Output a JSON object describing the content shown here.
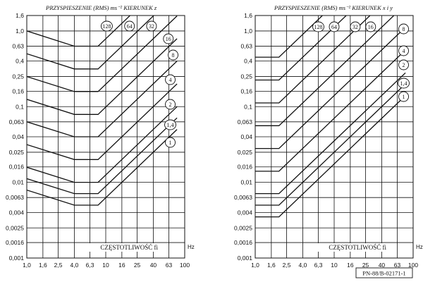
{
  "chart_data": [
    {
      "type": "line",
      "title": "PRZYSPIESZENIE (RMS) ms⁻² KIERUNEK z",
      "xlabel": "CZĘSTOTLIWOŚĆ fi",
      "xunit": "Hz",
      "xscale": "log",
      "yscale": "log",
      "xlim": [
        1.0,
        100
      ],
      "ylim": [
        0.001,
        1.6
      ],
      "x_ticks": [
        "1,0",
        "1,6",
        "2,5",
        "4,0",
        "6,3",
        "10",
        "16",
        "25",
        "40",
        "63",
        "100"
      ],
      "y_ticks": [
        "1,6",
        "1,0",
        "0,63",
        "0,4",
        "0,25",
        "0,16",
        "0,1",
        "0,063",
        "0,04",
        "0,025",
        "0,016",
        "0,01",
        "0,0063",
        "0,004",
        "0,0025",
        "0,0016",
        "0,001"
      ],
      "series": [
        {
          "name": "128",
          "x": [
            1.0,
            4.0,
            8.0,
            80.0
          ],
          "y": [
            1.0,
            0.63,
            0.63,
            6.3
          ]
        },
        {
          "name": "64",
          "x": [
            1.0,
            4.0,
            8.0,
            80.0
          ],
          "y": [
            0.5,
            0.315,
            0.315,
            3.15
          ]
        },
        {
          "name": "32",
          "x": [
            1.0,
            4.0,
            8.0,
            80.0
          ],
          "y": [
            0.25,
            0.158,
            0.158,
            1.58
          ]
        },
        {
          "name": "16",
          "x": [
            1.0,
            4.0,
            8.0,
            80.0
          ],
          "y": [
            0.125,
            0.079,
            0.079,
            0.79
          ]
        },
        {
          "name": "8",
          "x": [
            1.0,
            4.0,
            8.0,
            80.0
          ],
          "y": [
            0.063,
            0.04,
            0.04,
            0.4
          ]
        },
        {
          "name": "4",
          "x": [
            1.0,
            4.0,
            8.0,
            80.0
          ],
          "y": [
            0.0315,
            0.02,
            0.02,
            0.2
          ]
        },
        {
          "name": "2",
          "x": [
            1.0,
            4.0,
            8.0,
            80.0
          ],
          "y": [
            0.0158,
            0.01,
            0.01,
            0.1
          ]
        },
        {
          "name": "1,4",
          "x": [
            1.0,
            4.0,
            8.0,
            80.0
          ],
          "y": [
            0.0112,
            0.0071,
            0.0071,
            0.071
          ]
        },
        {
          "name": "1",
          "x": [
            1.0,
            4.0,
            8.0,
            80.0
          ],
          "y": [
            0.0079,
            0.005,
            0.005,
            0.05
          ]
        }
      ]
    },
    {
      "type": "line",
      "title": "PRZYSPIESZENIE (RMS) ms⁻² KIERUNEK x i y",
      "xlabel": "CZĘSTOTLIWOŚĆ fi",
      "xunit": "Hz",
      "xscale": "log",
      "yscale": "log",
      "xlim": [
        1.0,
        100
      ],
      "ylim": [
        0.001,
        1.6
      ],
      "x_ticks": [
        "1,0",
        "1,6",
        "2,5",
        "4,0",
        "6,3",
        "10",
        "16",
        "25",
        "40",
        "63",
        "100"
      ],
      "y_ticks": [
        "1,6",
        "1,0",
        "0,63",
        "0,4",
        "0,25",
        "0,16",
        "0,1",
        "0,063",
        "0,04",
        "0,025",
        "0,016",
        "0,01",
        "0,0063",
        "0,004",
        "0,0025",
        "0,0016",
        "0,001"
      ],
      "series": [
        {
          "name": "128",
          "x": [
            1.0,
            2.0,
            80.0
          ],
          "y": [
            0.45,
            0.45,
            18.0
          ]
        },
        {
          "name": "64",
          "x": [
            1.0,
            2.0,
            80.0
          ],
          "y": [
            0.225,
            0.225,
            9.0
          ]
        },
        {
          "name": "32",
          "x": [
            1.0,
            2.0,
            80.0
          ],
          "y": [
            0.112,
            0.112,
            4.5
          ]
        },
        {
          "name": "16",
          "x": [
            1.0,
            2.0,
            80.0
          ],
          "y": [
            0.056,
            0.056,
            2.24
          ]
        },
        {
          "name": "8",
          "x": [
            1.0,
            2.0,
            80.0
          ],
          "y": [
            0.028,
            0.028,
            1.12
          ]
        },
        {
          "name": "4",
          "x": [
            1.0,
            2.0,
            80.0
          ],
          "y": [
            0.014,
            0.014,
            0.56
          ]
        },
        {
          "name": "2",
          "x": [
            1.0,
            2.0,
            80.0
          ],
          "y": [
            0.0071,
            0.0071,
            0.28
          ]
        },
        {
          "name": "1,4",
          "x": [
            1.0,
            2.0,
            80.0
          ],
          "y": [
            0.005,
            0.005,
            0.2
          ]
        },
        {
          "name": "1",
          "x": [
            1.0,
            2.0,
            80.0
          ],
          "y": [
            0.0035,
            0.0035,
            0.14
          ]
        }
      ]
    }
  ],
  "stamp": "PN-88/B-02171-1"
}
